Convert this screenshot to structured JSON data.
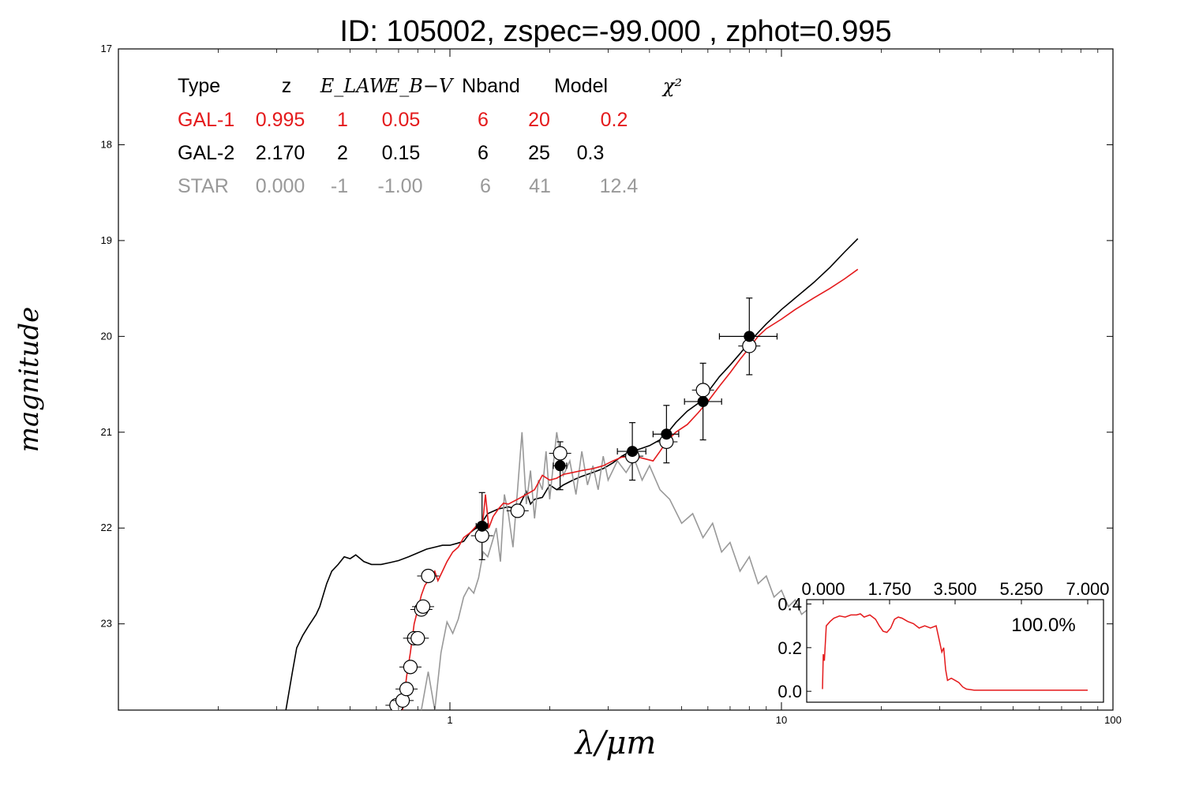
{
  "title": "ID:  105002, zspec=-99.000 , zphot=0.995",
  "colors": {
    "gal1": "#e41a1c",
    "gal2": "#000000",
    "star": "#999999",
    "axis": "#000000"
  },
  "chart_data": [
    {
      "type": "line",
      "title": "ID:  105002, zspec=-99.000 , zphot=0.995",
      "xlabel": "λ/μm",
      "ylabel": "magnitude",
      "xscale": "log",
      "xlim": [
        0.1,
        100
      ],
      "ylim": [
        23.9,
        17.0
      ],
      "y_inverted": true,
      "xticks": [
        1,
        10,
        100
      ],
      "xtick_labels": [
        "1",
        "10",
        "100"
      ],
      "yticks": [
        17,
        18,
        19,
        20,
        21,
        22,
        23
      ],
      "ytick_labels": [
        "17",
        "18",
        "19",
        "20",
        "21",
        "22",
        "23"
      ],
      "grid": false,
      "legend_table": {
        "headers": [
          "Type",
          "z",
          "E_LAW",
          "E_B−V",
          "Nband",
          "Model",
          "χ²"
        ],
        "rows": [
          {
            "key": "gal1",
            "cells": [
              "GAL-1",
              "0.995",
              "1",
              "0.05",
              "6",
              "20",
              "0.2"
            ]
          },
          {
            "key": "gal2",
            "cells": [
              "GAL-2",
              "2.170",
              "2",
              "0.15",
              "6",
              "25",
              "0.3"
            ]
          },
          {
            "key": "star",
            "cells": [
              "STAR",
              "0.000",
              "-1",
              "-1.00",
              "6",
              "41",
              "12.4"
            ]
          }
        ]
      },
      "series": [
        {
          "key": "gal2",
          "style": "line",
          "x": [
            0.32,
            0.335,
            0.345,
            0.36,
            0.375,
            0.385,
            0.395,
            0.405,
            0.425,
            0.44,
            0.46,
            0.48,
            0.5,
            0.52,
            0.55,
            0.58,
            0.62,
            0.66,
            0.7,
            0.75,
            0.8,
            0.85,
            0.9,
            0.95,
            1.0,
            1.05,
            1.1,
            1.15,
            1.2,
            1.25,
            1.3,
            1.4,
            1.5,
            1.6,
            1.7,
            1.75,
            1.8,
            1.9,
            2.0,
            2.1,
            2.2,
            2.35,
            2.5,
            2.7,
            2.9,
            3.1,
            3.3,
            3.5,
            3.7,
            4.0,
            4.3,
            4.5,
            4.8,
            5.2,
            5.6,
            6.0,
            6.5,
            7.0,
            7.5,
            8.0,
            8.5,
            9.0,
            10.0,
            11.0,
            12.5,
            14.0,
            15.5,
            17.0
          ],
          "y": [
            23.9,
            23.5,
            23.25,
            23.12,
            23.02,
            22.96,
            22.9,
            22.82,
            22.58,
            22.45,
            22.38,
            22.3,
            22.32,
            22.28,
            22.35,
            22.38,
            22.38,
            22.36,
            22.34,
            22.3,
            22.26,
            22.22,
            22.2,
            22.18,
            22.18,
            22.16,
            22.14,
            22.05,
            22.0,
            21.94,
            21.85,
            21.8,
            21.78,
            21.8,
            21.62,
            21.75,
            21.7,
            21.68,
            21.55,
            21.6,
            21.55,
            21.5,
            21.46,
            21.42,
            21.38,
            21.32,
            21.25,
            21.2,
            21.18,
            21.14,
            21.08,
            21.02,
            20.9,
            20.78,
            20.7,
            20.58,
            20.42,
            20.3,
            20.18,
            20.06,
            19.96,
            19.87,
            19.72,
            19.6,
            19.44,
            19.28,
            19.12,
            18.98
          ]
        },
        {
          "key": "star",
          "style": "line",
          "x": [
            0.82,
            0.86,
            0.9,
            0.94,
            0.98,
            1.02,
            1.06,
            1.1,
            1.14,
            1.18,
            1.22,
            1.26,
            1.3,
            1.34,
            1.38,
            1.42,
            1.46,
            1.5,
            1.55,
            1.6,
            1.65,
            1.7,
            1.75,
            1.8,
            1.85,
            1.9,
            1.95,
            2.0,
            2.1,
            2.2,
            2.3,
            2.4,
            2.5,
            2.6,
            2.7,
            2.8,
            2.9,
            3.0,
            3.2,
            3.4,
            3.6,
            3.8,
            4.0,
            4.3,
            4.6,
            5.0,
            5.4,
            5.8,
            6.2,
            6.6,
            7.0,
            7.5,
            8.0,
            8.5,
            9.0,
            9.5,
            10.0,
            10.5,
            11.0,
            11.5,
            12.0
          ],
          "y": [
            23.9,
            23.5,
            23.9,
            23.3,
            22.98,
            23.1,
            22.95,
            22.72,
            22.62,
            22.68,
            22.52,
            22.25,
            22.3,
            22.15,
            22.0,
            22.35,
            21.65,
            21.85,
            22.2,
            21.6,
            21.0,
            21.75,
            21.4,
            21.9,
            21.5,
            21.6,
            21.2,
            21.7,
            21.0,
            21.45,
            21.3,
            21.65,
            21.2,
            21.55,
            21.35,
            21.6,
            21.25,
            21.5,
            21.3,
            21.42,
            21.28,
            21.5,
            21.35,
            21.6,
            21.7,
            21.95,
            21.85,
            22.1,
            21.95,
            22.25,
            22.15,
            22.45,
            22.3,
            22.58,
            22.5,
            22.72,
            22.65,
            22.82,
            22.75,
            22.9,
            22.85
          ]
        },
        {
          "key": "gal1",
          "style": "line",
          "x": [
            0.72,
            0.74,
            0.76,
            0.78,
            0.8,
            0.82,
            0.84,
            0.86,
            0.88,
            0.9,
            0.92,
            0.95,
            0.98,
            1.02,
            1.06,
            1.1,
            1.15,
            1.2,
            1.25,
            1.28,
            1.31,
            1.35,
            1.4,
            1.45,
            1.5,
            1.6,
            1.7,
            1.8,
            1.9,
            2.0,
            2.1,
            2.2,
            2.35,
            2.5,
            2.7,
            2.9,
            3.1,
            3.3,
            3.5,
            3.7,
            3.9,
            4.1,
            4.3,
            4.5,
            4.8,
            5.2,
            5.6,
            6.0,
            6.5,
            7.0,
            7.5,
            8.0,
            8.5,
            9.0,
            10.0,
            11.0,
            12.5,
            14.0,
            15.5,
            17.0
          ],
          "y": [
            23.9,
            23.55,
            23.3,
            23.0,
            22.85,
            22.7,
            22.6,
            22.55,
            22.5,
            22.45,
            22.55,
            22.45,
            22.35,
            22.25,
            22.2,
            22.1,
            22.05,
            21.98,
            22.02,
            21.65,
            22.0,
            21.88,
            21.8,
            21.74,
            21.75,
            21.7,
            21.65,
            21.6,
            21.45,
            21.5,
            21.48,
            21.44,
            21.42,
            21.4,
            21.38,
            21.35,
            21.3,
            21.26,
            21.25,
            21.26,
            21.28,
            21.3,
            21.2,
            21.1,
            21.0,
            20.92,
            20.8,
            20.68,
            20.52,
            20.38,
            20.24,
            20.12,
            20.0,
            19.92,
            19.82,
            19.72,
            19.6,
            19.5,
            19.4,
            19.3
          ]
        },
        {
          "key": "obs_open",
          "style": "open-markers",
          "points": [
            {
              "x": 0.69,
              "y": 23.85
            },
            {
              "x": 0.72,
              "y": 23.8
            },
            {
              "x": 0.74,
              "y": 23.68
            },
            {
              "x": 0.76,
              "y": 23.45
            },
            {
              "x": 0.78,
              "y": 23.15
            },
            {
              "x": 0.8,
              "y": 23.15
            },
            {
              "x": 0.82,
              "y": 22.85
            },
            {
              "x": 0.83,
              "y": 22.82
            },
            {
              "x": 0.86,
              "y": 22.5
            },
            {
              "x": 1.25,
              "y": 22.08
            },
            {
              "x": 1.6,
              "y": 21.82
            },
            {
              "x": 2.15,
              "y": 21.22
            },
            {
              "x": 3.55,
              "y": 21.25
            },
            {
              "x": 4.5,
              "y": 21.1
            },
            {
              "x": 5.8,
              "y": 20.56
            },
            {
              "x": 8.0,
              "y": 20.1
            }
          ]
        },
        {
          "key": "obs_filled",
          "style": "filled-markers-with-errors",
          "points": [
            {
              "x": 1.25,
              "y": 21.98,
              "xerr": [
                1.2,
                1.3
              ],
              "yerr": 0.35
            },
            {
              "x": 2.15,
              "y": 21.35,
              "xerr": [
                2.05,
                2.25
              ],
              "yerr": 0.25
            },
            {
              "x": 3.55,
              "y": 21.2,
              "xerr": [
                3.2,
                3.9
              ],
              "yerr": 0.3
            },
            {
              "x": 4.5,
              "y": 21.02,
              "xerr": [
                4.1,
                4.9
              ],
              "yerr": 0.3
            },
            {
              "x": 5.8,
              "y": 20.68,
              "xerr": [
                5.1,
                6.6
              ],
              "yerr": 0.4
            },
            {
              "x": 8.0,
              "y": 20.0,
              "xerr": [
                6.5,
                9.7
              ],
              "yerr": 0.4
            }
          ]
        }
      ]
    },
    {
      "type": "line",
      "title": "",
      "xlabel": "",
      "ylabel": "",
      "xlim": [
        0.0,
        7.0
      ],
      "ylim": [
        -0.05,
        0.42
      ],
      "xticks": [
        0.0,
        1.75,
        3.5,
        5.25,
        7.0
      ],
      "xtick_labels": [
        "0.000",
        "1.750",
        "3.500",
        "5.250",
        "7.000"
      ],
      "xtick_position": "top",
      "yticks": [
        0.0,
        0.2,
        0.4
      ],
      "ytick_labels": [
        "0.0",
        "0.2",
        "0.4"
      ],
      "annotation": "100.0%",
      "grid": false,
      "series": [
        {
          "key": "gal1",
          "x": [
            0.0,
            0.02,
            0.05,
            0.1,
            0.2,
            0.3,
            0.45,
            0.6,
            0.75,
            0.9,
            1.0,
            1.1,
            1.25,
            1.4,
            1.5,
            1.6,
            1.7,
            1.8,
            1.9,
            2.0,
            2.1,
            2.25,
            2.4,
            2.55,
            2.7,
            2.85,
            3.0,
            3.1,
            3.15,
            3.2,
            3.25,
            3.3,
            3.4,
            3.5,
            3.6,
            3.7,
            3.8,
            3.9,
            4.0,
            4.2,
            4.5,
            5.0,
            6.0,
            7.0
          ],
          "y": [
            0.01,
            0.17,
            0.14,
            0.3,
            0.32,
            0.335,
            0.345,
            0.34,
            0.35,
            0.35,
            0.355,
            0.34,
            0.35,
            0.33,
            0.3,
            0.275,
            0.27,
            0.29,
            0.33,
            0.34,
            0.335,
            0.32,
            0.31,
            0.29,
            0.3,
            0.29,
            0.3,
            0.22,
            0.18,
            0.2,
            0.1,
            0.05,
            0.06,
            0.05,
            0.04,
            0.02,
            0.01,
            0.008,
            0.005,
            0.005,
            0.005,
            0.005,
            0.005,
            0.005
          ]
        }
      ]
    }
  ]
}
